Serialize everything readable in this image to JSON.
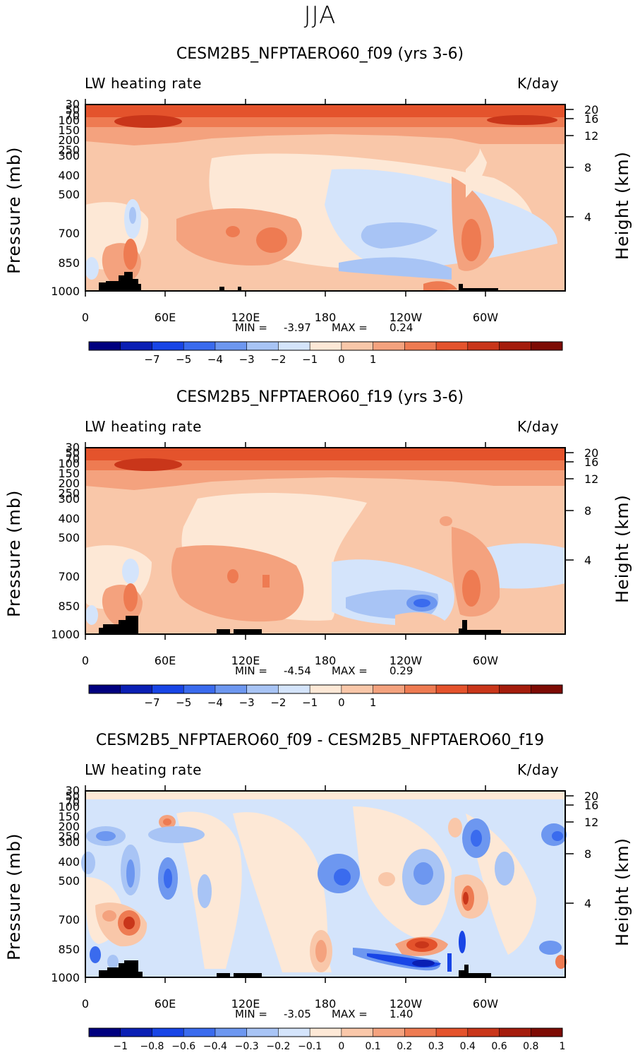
{
  "figure": {
    "season": "JJA"
  },
  "chart_data": [
    {
      "type": "heatmap",
      "title": "CESM2B5_NFPTAERO60_f09 (yrs 3-6)",
      "left_label": "LW heating rate",
      "right_label": "K/day",
      "ylabel": "Pressure (mb)",
      "ylabel_right": "Height (km)",
      "xticks": [
        "0",
        "60E",
        "120E",
        "180",
        "120W",
        "60W"
      ],
      "yticks": [
        "30",
        "50",
        "70",
        "100",
        "150",
        "200",
        "250",
        "300",
        "400",
        "500",
        "700",
        "850",
        "1000"
      ],
      "height_ticks": [
        "20",
        "16",
        "12",
        "8",
        "4"
      ],
      "min_label": "MIN =",
      "min_value": "-3.97",
      "max_label": "MAX =",
      "max_value": "0.24",
      "colorbar_labels": [
        "-7",
        "-5",
        "-4",
        "-3",
        "-2",
        "-1",
        "0",
        "1"
      ],
      "colorbar_colors": [
        "#00007f",
        "#0a1fb4",
        "#1845e6",
        "#3a6bee",
        "#6d97f0",
        "#a8c4f5",
        "#d4e4fb",
        "#fde8d6",
        "#f9c7a9",
        "#f4a27e",
        "#ee7b52",
        "#e4532c",
        "#c9361a",
        "#a41c0c",
        "#7d0b04"
      ]
    },
    {
      "type": "heatmap",
      "title": "CESM2B5_NFPTAERO60_f19 (yrs 3-6)",
      "left_label": "LW heating rate",
      "right_label": "K/day",
      "ylabel": "Pressure (mb)",
      "ylabel_right": "Height (km)",
      "xticks": [
        "0",
        "60E",
        "120E",
        "180",
        "120W",
        "60W"
      ],
      "yticks": [
        "30",
        "50",
        "70",
        "100",
        "150",
        "200",
        "250",
        "300",
        "400",
        "500",
        "700",
        "850",
        "1000"
      ],
      "height_ticks": [
        "20",
        "16",
        "12",
        "8",
        "4"
      ],
      "min_label": "MIN =",
      "min_value": "-4.54",
      "max_label": "MAX =",
      "max_value": "0.29",
      "colorbar_labels": [
        "-7",
        "-5",
        "-4",
        "-3",
        "-2",
        "-1",
        "0",
        "1"
      ],
      "colorbar_colors": [
        "#00007f",
        "#0a1fb4",
        "#1845e6",
        "#3a6bee",
        "#6d97f0",
        "#a8c4f5",
        "#d4e4fb",
        "#fde8d6",
        "#f9c7a9",
        "#f4a27e",
        "#ee7b52",
        "#e4532c",
        "#c9361a",
        "#a41c0c",
        "#7d0b04"
      ]
    },
    {
      "type": "heatmap",
      "title": "CESM2B5_NFPTAERO60_f09 - CESM2B5_NFPTAERO60_f19",
      "left_label": "LW heating rate",
      "right_label": "K/day",
      "ylabel": "Pressure (mb)",
      "ylabel_right": "Height (km)",
      "xticks": [
        "0",
        "60E",
        "120E",
        "180",
        "120W",
        "60W"
      ],
      "yticks": [
        "30",
        "50",
        "70",
        "100",
        "150",
        "200",
        "250",
        "300",
        "400",
        "500",
        "700",
        "850",
        "1000"
      ],
      "height_ticks": [
        "20",
        "16",
        "12",
        "8",
        "4"
      ],
      "min_label": "MIN =",
      "min_value": "-3.05",
      "max_label": "MAX =",
      "max_value": "1.40",
      "colorbar_labels": [
        "-1",
        "-0.8",
        "-0.6",
        "-0.4",
        "-0.3",
        "-0.2",
        "-0.1",
        "0",
        "0.1",
        "0.2",
        "0.3",
        "0.4",
        "0.6",
        "0.8",
        "1"
      ],
      "colorbar_colors": [
        "#00007f",
        "#0a1fb4",
        "#1845e6",
        "#3a6bee",
        "#6d97f0",
        "#a8c4f5",
        "#d4e4fb",
        "#fde8d6",
        "#f9c7a9",
        "#f4a27e",
        "#ee7b52",
        "#e4532c",
        "#c9361a",
        "#a41c0c",
        "#7d0b04"
      ]
    }
  ]
}
